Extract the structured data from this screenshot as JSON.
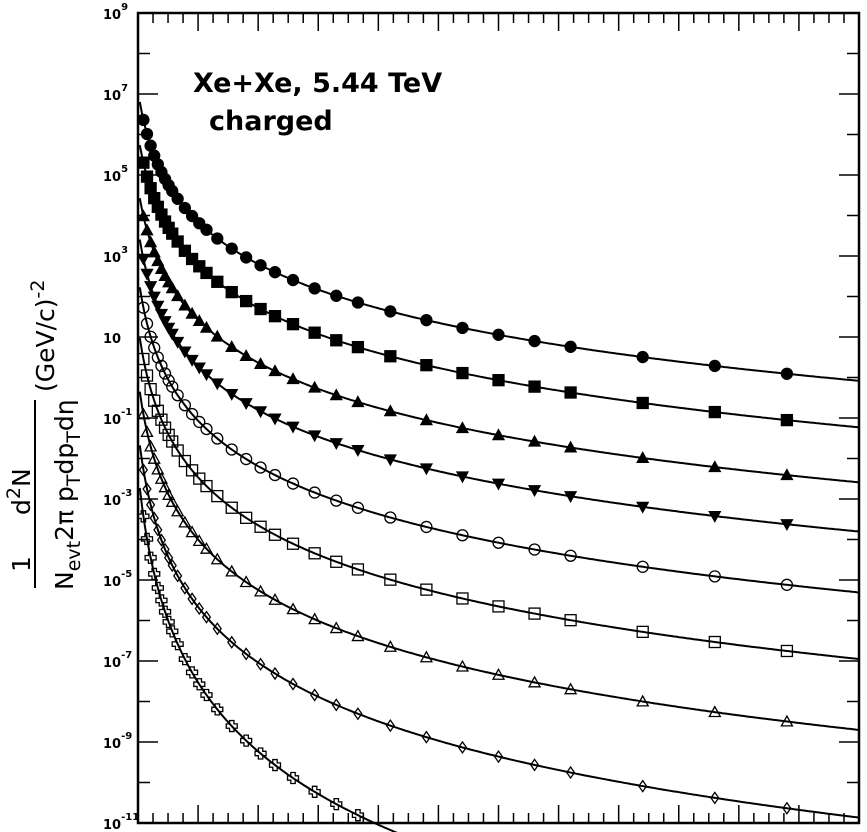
{
  "chart_data": {
    "type": "scatter",
    "title": "Xe+Xe, 5.44 TeV",
    "subtitle": "charged",
    "ylabel": {
      "numerator": "d",
      "numerator_sup": "2",
      "numerator_rest": "N",
      "fraction_one": "1",
      "denominator_parts": [
        "N",
        "evt",
        "2π p",
        "T",
        "dp",
        "T",
        "dη"
      ],
      "units": "(GeV/c)",
      "units_sup": "-2"
    },
    "yscale": "log",
    "ylim": [
      1e-11,
      1000000000.0
    ],
    "xlim": [
      0,
      20
    ],
    "ytick_labels": [
      {
        "base": "10",
        "exp": "-11",
        "value": 1e-11
      },
      {
        "base": "10",
        "exp": "-9",
        "value": 1e-09
      },
      {
        "base": "10",
        "exp": "-7",
        "value": 1e-07
      },
      {
        "base": "10",
        "exp": "-5",
        "value": 1e-05
      },
      {
        "base": "10",
        "exp": "-3",
        "value": 0.001
      },
      {
        "base": "10",
        "exp": "-1",
        "value": 0.1
      },
      {
        "base": "10",
        "exp": "",
        "value": 10
      },
      {
        "base": "10",
        "exp": "3",
        "value": 1000.0
      },
      {
        "base": "10",
        "exp": "5",
        "value": 100000.0
      },
      {
        "base": "10",
        "exp": "7",
        "value": 10000000.0
      },
      {
        "base": "10",
        "exp": "9",
        "value": 1000000000.0
      }
    ],
    "x_sample": [
      0.15,
      0.25,
      0.35,
      0.45,
      0.55,
      0.65,
      0.75,
      0.85,
      0.95,
      1.1,
      1.3,
      1.5,
      1.7,
      1.9,
      2.2,
      2.6,
      3.0,
      3.4,
      3.8,
      4.3,
      4.9,
      5.5,
      6.1,
      7.0,
      8.0,
      9.0,
      10.0,
      11.0,
      12.0,
      14.0,
      16.0,
      18.0,
      20.0
    ],
    "series": [
      {
        "marker": "circle-filled",
        "y0": 12000000.0,
        "p": 0.28,
        "q": 3.85
      },
      {
        "marker": "square-filled",
        "y0": 1000000.0,
        "p": 0.3,
        "q": 3.95
      },
      {
        "marker": "triangle-filled",
        "y0": 50000.0,
        "p": 0.29,
        "q": 3.95
      },
      {
        "marker": "tri-down-filled",
        "y0": 5000.0,
        "p": 0.27,
        "q": 4.0
      },
      {
        "marker": "circle-open",
        "y0": 350.0,
        "p": 0.26,
        "q": 4.15
      },
      {
        "marker": "square-open",
        "y0": 20.0,
        "p": 0.27,
        "q": 4.4
      },
      {
        "marker": "triangle-open",
        "y0": 1.0,
        "p": 0.26,
        "q": 4.6
      },
      {
        "marker": "diamond-open",
        "y0": 0.05,
        "p": 0.27,
        "q": 5.1
      },
      {
        "marker": "cross-open",
        "y0": 0.005,
        "p": 0.3,
        "q": 6.4
      }
    ]
  }
}
